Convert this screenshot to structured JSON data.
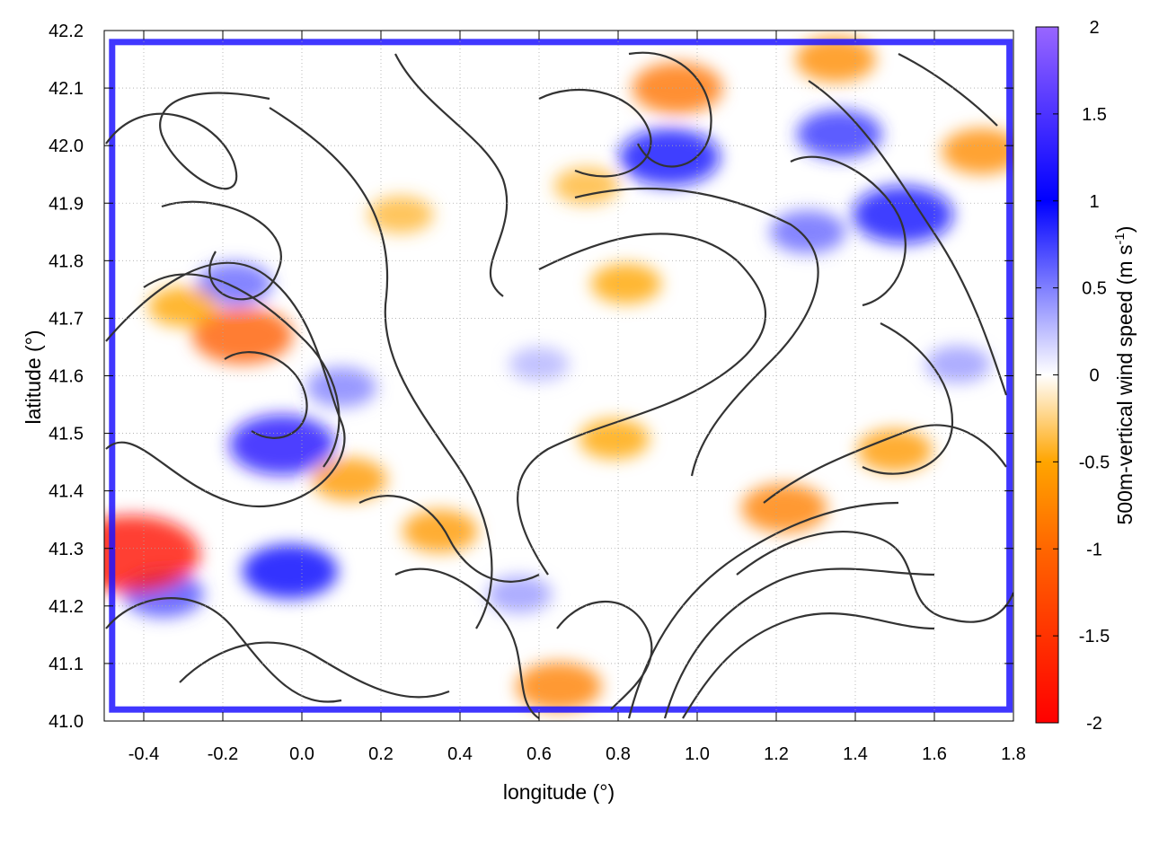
{
  "chart_data": {
    "type": "heatmap",
    "xlabel": "longitude (°)",
    "ylabel": "latitude (°)",
    "xlim": [
      -0.5,
      1.8
    ],
    "ylim": [
      41.0,
      42.2
    ],
    "x_ticks": [
      "-0.4",
      "-0.2",
      "0.0",
      "0.2",
      "0.4",
      "0.6",
      "0.8",
      "1.0",
      "1.2",
      "1.4",
      "1.6",
      "1.8"
    ],
    "y_ticks": [
      "41.0",
      "41.1",
      "41.2",
      "41.3",
      "41.4",
      "41.5",
      "41.6",
      "41.7",
      "41.8",
      "41.9",
      "42.0",
      "42.1",
      "42.2"
    ],
    "colorbar": {
      "label_main": "500m-vertical wind speed (m s",
      "label_sup": "-1",
      "label_close": ")",
      "range": [
        -2,
        2
      ],
      "ticks": [
        "-2",
        "-1.5",
        "-1",
        "-0.5",
        "0",
        "0.5",
        "1",
        "1.5",
        "2"
      ],
      "colors": [
        "#ff0000",
        "#ff6600",
        "#ffa500",
        "#ffffff",
        "#0000ff",
        "#9966ff"
      ]
    },
    "grid": true,
    "features": {
      "updraft_max": [
        {
          "lon": -0.05,
          "lat": 41.48,
          "w": 1.2
        },
        {
          "lon": -0.03,
          "lat": 41.26,
          "w": 1.0
        },
        {
          "lon": 0.93,
          "lat": 41.98,
          "w": 1.1
        },
        {
          "lon": 1.52,
          "lat": 41.88,
          "w": 1.1
        },
        {
          "lon": 1.36,
          "lat": 42.02,
          "w": 0.8
        },
        {
          "lon": 1.28,
          "lat": 41.85,
          "w": 0.6
        },
        {
          "lon": -0.17,
          "lat": 41.76,
          "w": 0.6
        },
        {
          "lon": -0.35,
          "lat": 41.22,
          "w": 0.7
        },
        {
          "lon": 0.1,
          "lat": 41.58,
          "w": 0.5
        },
        {
          "lon": 1.66,
          "lat": 41.62,
          "w": 0.4
        },
        {
          "lon": 0.6,
          "lat": 41.62,
          "w": 0.3
        },
        {
          "lon": 0.55,
          "lat": 41.22,
          "w": 0.4
        }
      ],
      "downdraft_max": [
        {
          "lon": -0.43,
          "lat": 41.29,
          "w": -1.8
        },
        {
          "lon": -0.15,
          "lat": 41.67,
          "w": -1.1
        },
        {
          "lon": -0.3,
          "lat": 41.72,
          "w": -0.5
        },
        {
          "lon": 0.95,
          "lat": 42.1,
          "w": -0.9
        },
        {
          "lon": 1.72,
          "lat": 41.99,
          "w": -0.7
        },
        {
          "lon": 1.35,
          "lat": 42.15,
          "w": -0.7
        },
        {
          "lon": 0.12,
          "lat": 41.42,
          "w": -0.6
        },
        {
          "lon": 0.35,
          "lat": 41.33,
          "w": -0.6
        },
        {
          "lon": 0.65,
          "lat": 41.06,
          "w": -0.8
        },
        {
          "lon": 0.82,
          "lat": 41.76,
          "w": -0.5
        },
        {
          "lon": 0.79,
          "lat": 41.49,
          "w": -0.5
        },
        {
          "lon": 1.22,
          "lat": 41.37,
          "w": -0.8
        },
        {
          "lon": 1.5,
          "lat": 41.47,
          "w": -0.6
        },
        {
          "lon": 0.25,
          "lat": 41.88,
          "w": -0.4
        },
        {
          "lon": 0.72,
          "lat": 41.93,
          "w": -0.4
        }
      ]
    }
  }
}
